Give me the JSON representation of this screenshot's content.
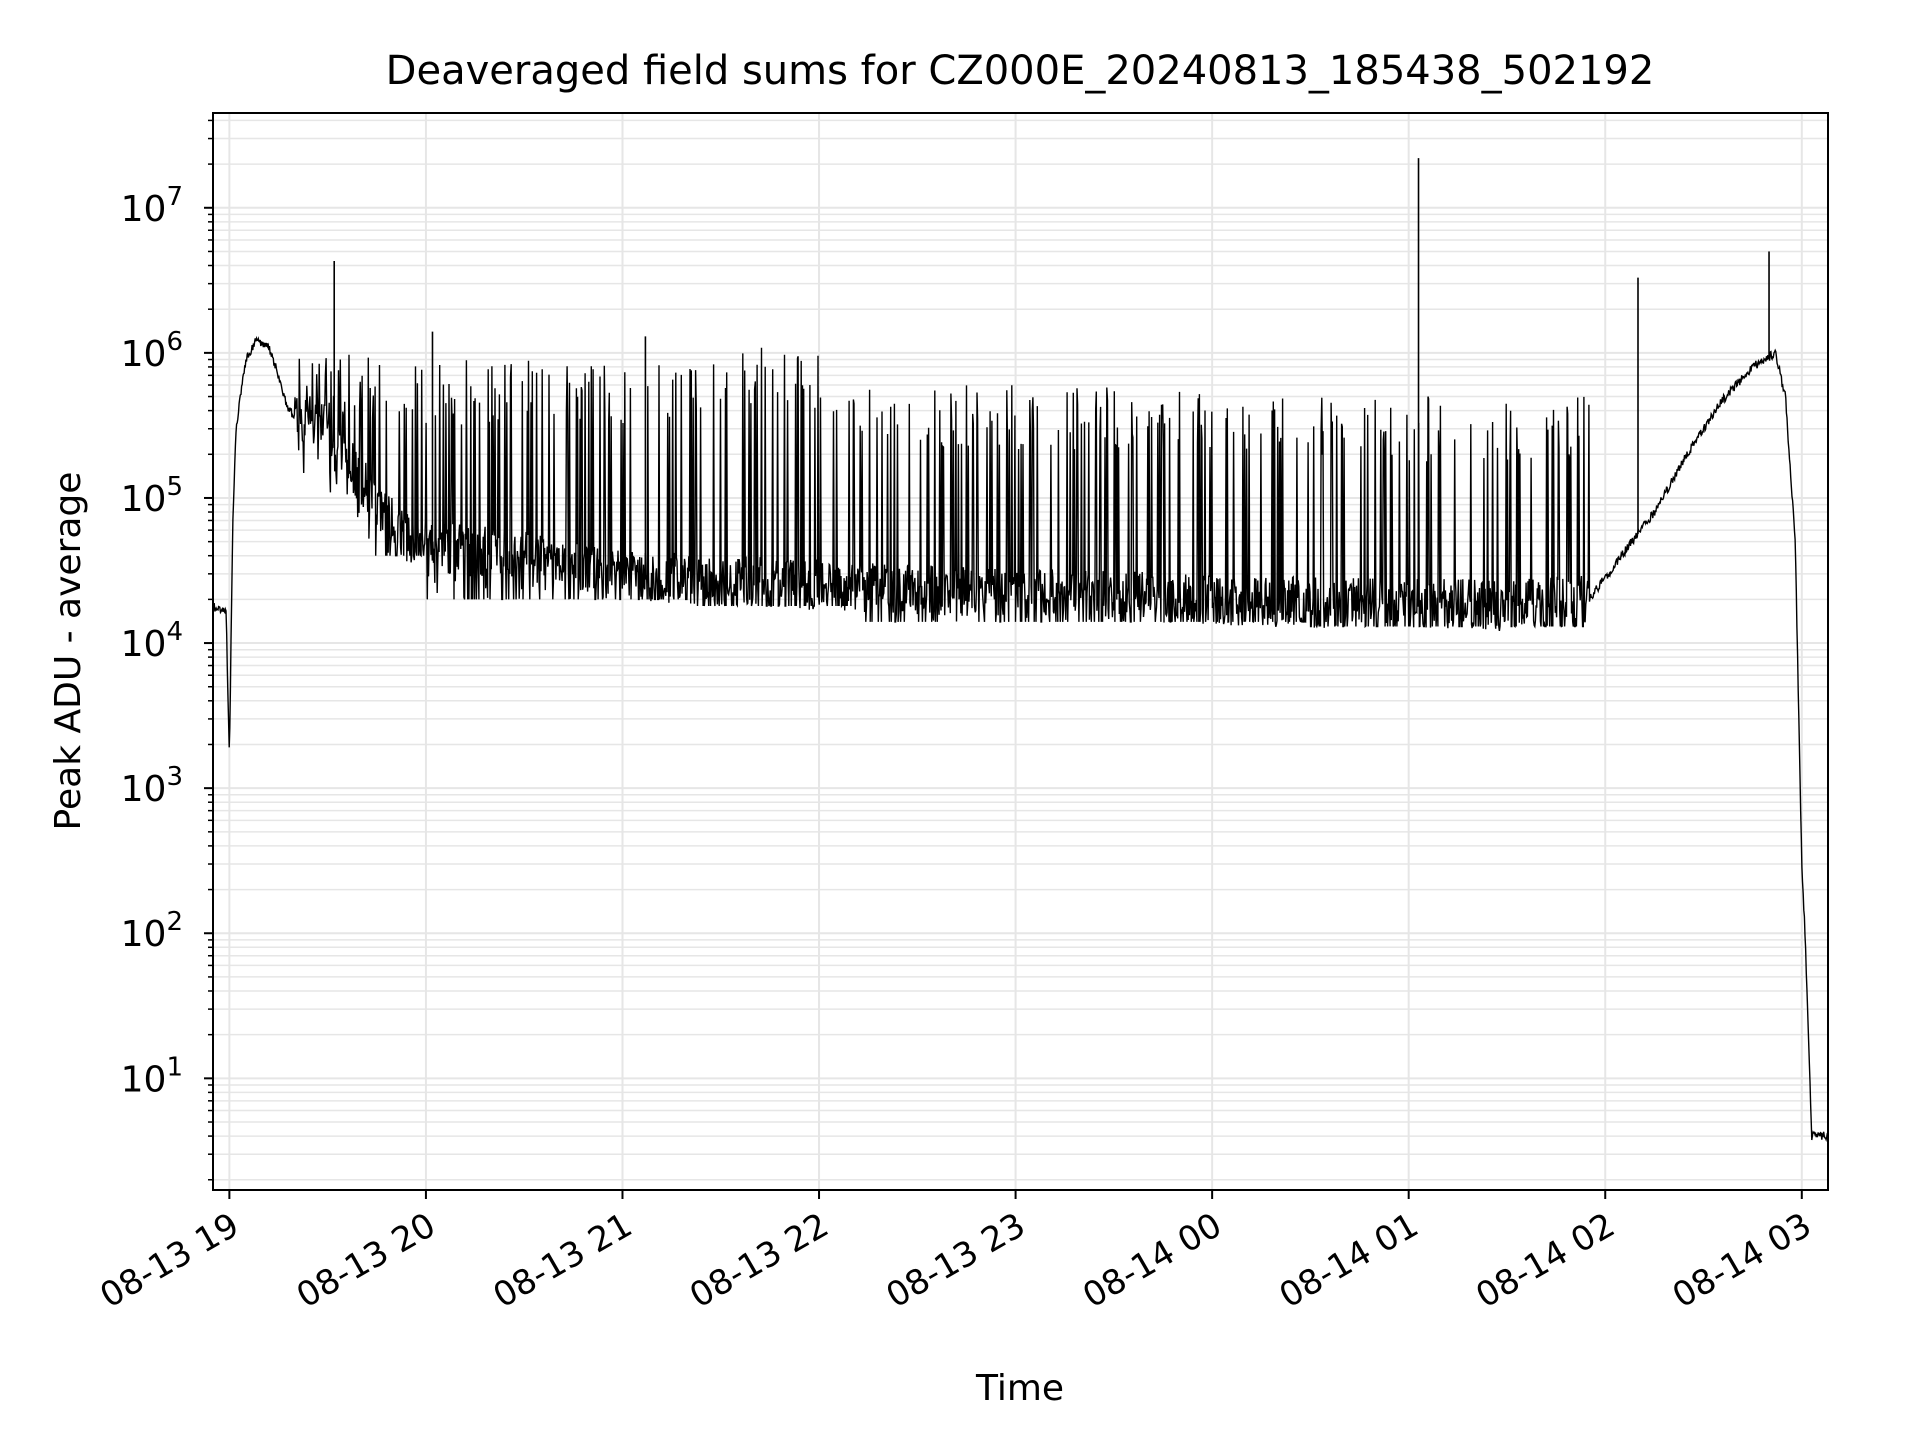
{
  "chart_data": {
    "type": "line",
    "title": "Deaveraged field sums for CZ000E_20240813_185438_502192",
    "xlabel": "Time",
    "ylabel": "Peak ADU - average",
    "x_scale": "time",
    "y_scale": "log",
    "xlim": [
      "2024-08-13 18:55",
      "2024-08-14 03:08"
    ],
    "ylim": [
      1.7,
      45000000
    ],
    "x_ticks": [
      {
        "value": "2024-08-13 19:00",
        "label": "08-13 19"
      },
      {
        "value": "2024-08-13 20:00",
        "label": "08-13 20"
      },
      {
        "value": "2024-08-13 21:00",
        "label": "08-13 21"
      },
      {
        "value": "2024-08-13 22:00",
        "label": "08-13 22"
      },
      {
        "value": "2024-08-13 23:00",
        "label": "08-13 23"
      },
      {
        "value": "2024-08-14 00:00",
        "label": "08-14 00"
      },
      {
        "value": "2024-08-14 01:00",
        "label": "08-14 01"
      },
      {
        "value": "2024-08-14 02:00",
        "label": "08-14 02"
      },
      {
        "value": "2024-08-14 03:00",
        "label": "08-14 03"
      }
    ],
    "y_ticks": [
      {
        "value": 10,
        "base": "10",
        "exp": "1"
      },
      {
        "value": 100,
        "base": "10",
        "exp": "2"
      },
      {
        "value": 1000,
        "base": "10",
        "exp": "3"
      },
      {
        "value": 10000,
        "base": "10",
        "exp": "4"
      },
      {
        "value": 100000,
        "base": "10",
        "exp": "5"
      },
      {
        "value": 1000000,
        "base": "10",
        "exp": "6"
      },
      {
        "value": 10000000,
        "base": "10",
        "exp": "7"
      }
    ],
    "grid": true,
    "line_color": "#000000",
    "grid_color": "#e6e6e6",
    "baseline_points": [
      [
        "2024-08-13 18:55",
        18000
      ],
      [
        "2024-08-13 18:59",
        16000
      ],
      [
        "2024-08-13 19:00",
        1600
      ],
      [
        "2024-08-13 19:01",
        60000
      ],
      [
        "2024-08-13 19:02",
        300000
      ],
      [
        "2024-08-13 19:05",
        900000
      ],
      [
        "2024-08-13 19:08",
        1200000
      ],
      [
        "2024-08-13 19:12",
        1100000
      ],
      [
        "2024-08-13 19:15",
        700000
      ],
      [
        "2024-08-13 19:18",
        400000
      ],
      [
        "2024-08-13 19:22",
        350000
      ],
      [
        "2024-08-13 19:28",
        320000
      ],
      [
        "2024-08-13 19:35",
        200000
      ],
      [
        "2024-08-13 19:45",
        90000
      ],
      [
        "2024-08-13 19:55",
        50000
      ],
      [
        "2024-08-13 20:05",
        45000
      ],
      [
        "2024-08-13 20:30",
        40000
      ],
      [
        "2024-08-13 20:55",
        30000
      ],
      [
        "2024-08-13 21:30",
        27000
      ],
      [
        "2024-08-13 22:00",
        25000
      ],
      [
        "2024-08-13 22:30",
        23000
      ],
      [
        "2024-08-13 23:00",
        22000
      ],
      [
        "2024-08-13 23:30",
        21000
      ],
      [
        "2024-08-14 00:00",
        20000
      ],
      [
        "2024-08-14 00:30",
        19000
      ],
      [
        "2024-08-14 01:00",
        19000
      ],
      [
        "2024-08-14 01:30",
        18000
      ],
      [
        "2024-08-14 01:55",
        20000
      ],
      [
        "2024-08-14 02:05",
        40000
      ],
      [
        "2024-08-14 02:15",
        80000
      ],
      [
        "2024-08-14 02:25",
        200000
      ],
      [
        "2024-08-14 02:35",
        450000
      ],
      [
        "2024-08-14 02:45",
        800000
      ],
      [
        "2024-08-14 02:52",
        1000000
      ],
      [
        "2024-08-14 02:55",
        500000
      ],
      [
        "2024-08-14 02:58",
        50000
      ],
      [
        "2024-08-14 03:00",
        300
      ],
      [
        "2024-08-14 03:01",
        100
      ],
      [
        "2024-08-14 03:02",
        20
      ],
      [
        "2024-08-14 03:03",
        4
      ],
      [
        "2024-08-14 03:08",
        4
      ]
    ],
    "spikes": [
      [
        "2024-08-13 19:32",
        4300000
      ],
      [
        "2024-08-13 20:02",
        1400000
      ],
      [
        "2024-08-13 21:07",
        1300000
      ],
      [
        "2024-08-14 01:03",
        22000000
      ],
      [
        "2024-08-14 02:10",
        3300000
      ],
      [
        "2024-08-14 02:50",
        5000000
      ]
    ],
    "noise": [
      {
        "from": "2024-08-13 19:20",
        "to": "2024-08-13 20:00",
        "low": 40000,
        "high": 1000000
      },
      {
        "from": "2024-08-13 20:00",
        "to": "2024-08-13 21:20",
        "low": 20000,
        "high": 900000
      },
      {
        "from": "2024-08-13 21:20",
        "to": "2024-08-13 22:10",
        "low": 18000,
        "high": 1100000
      },
      {
        "from": "2024-08-13 22:10",
        "to": "2024-08-14 00:30",
        "low": 14000,
        "high": 600000
      },
      {
        "from": "2024-08-14 00:30",
        "to": "2024-08-14 01:55",
        "low": 13000,
        "high": 500000
      }
    ]
  }
}
